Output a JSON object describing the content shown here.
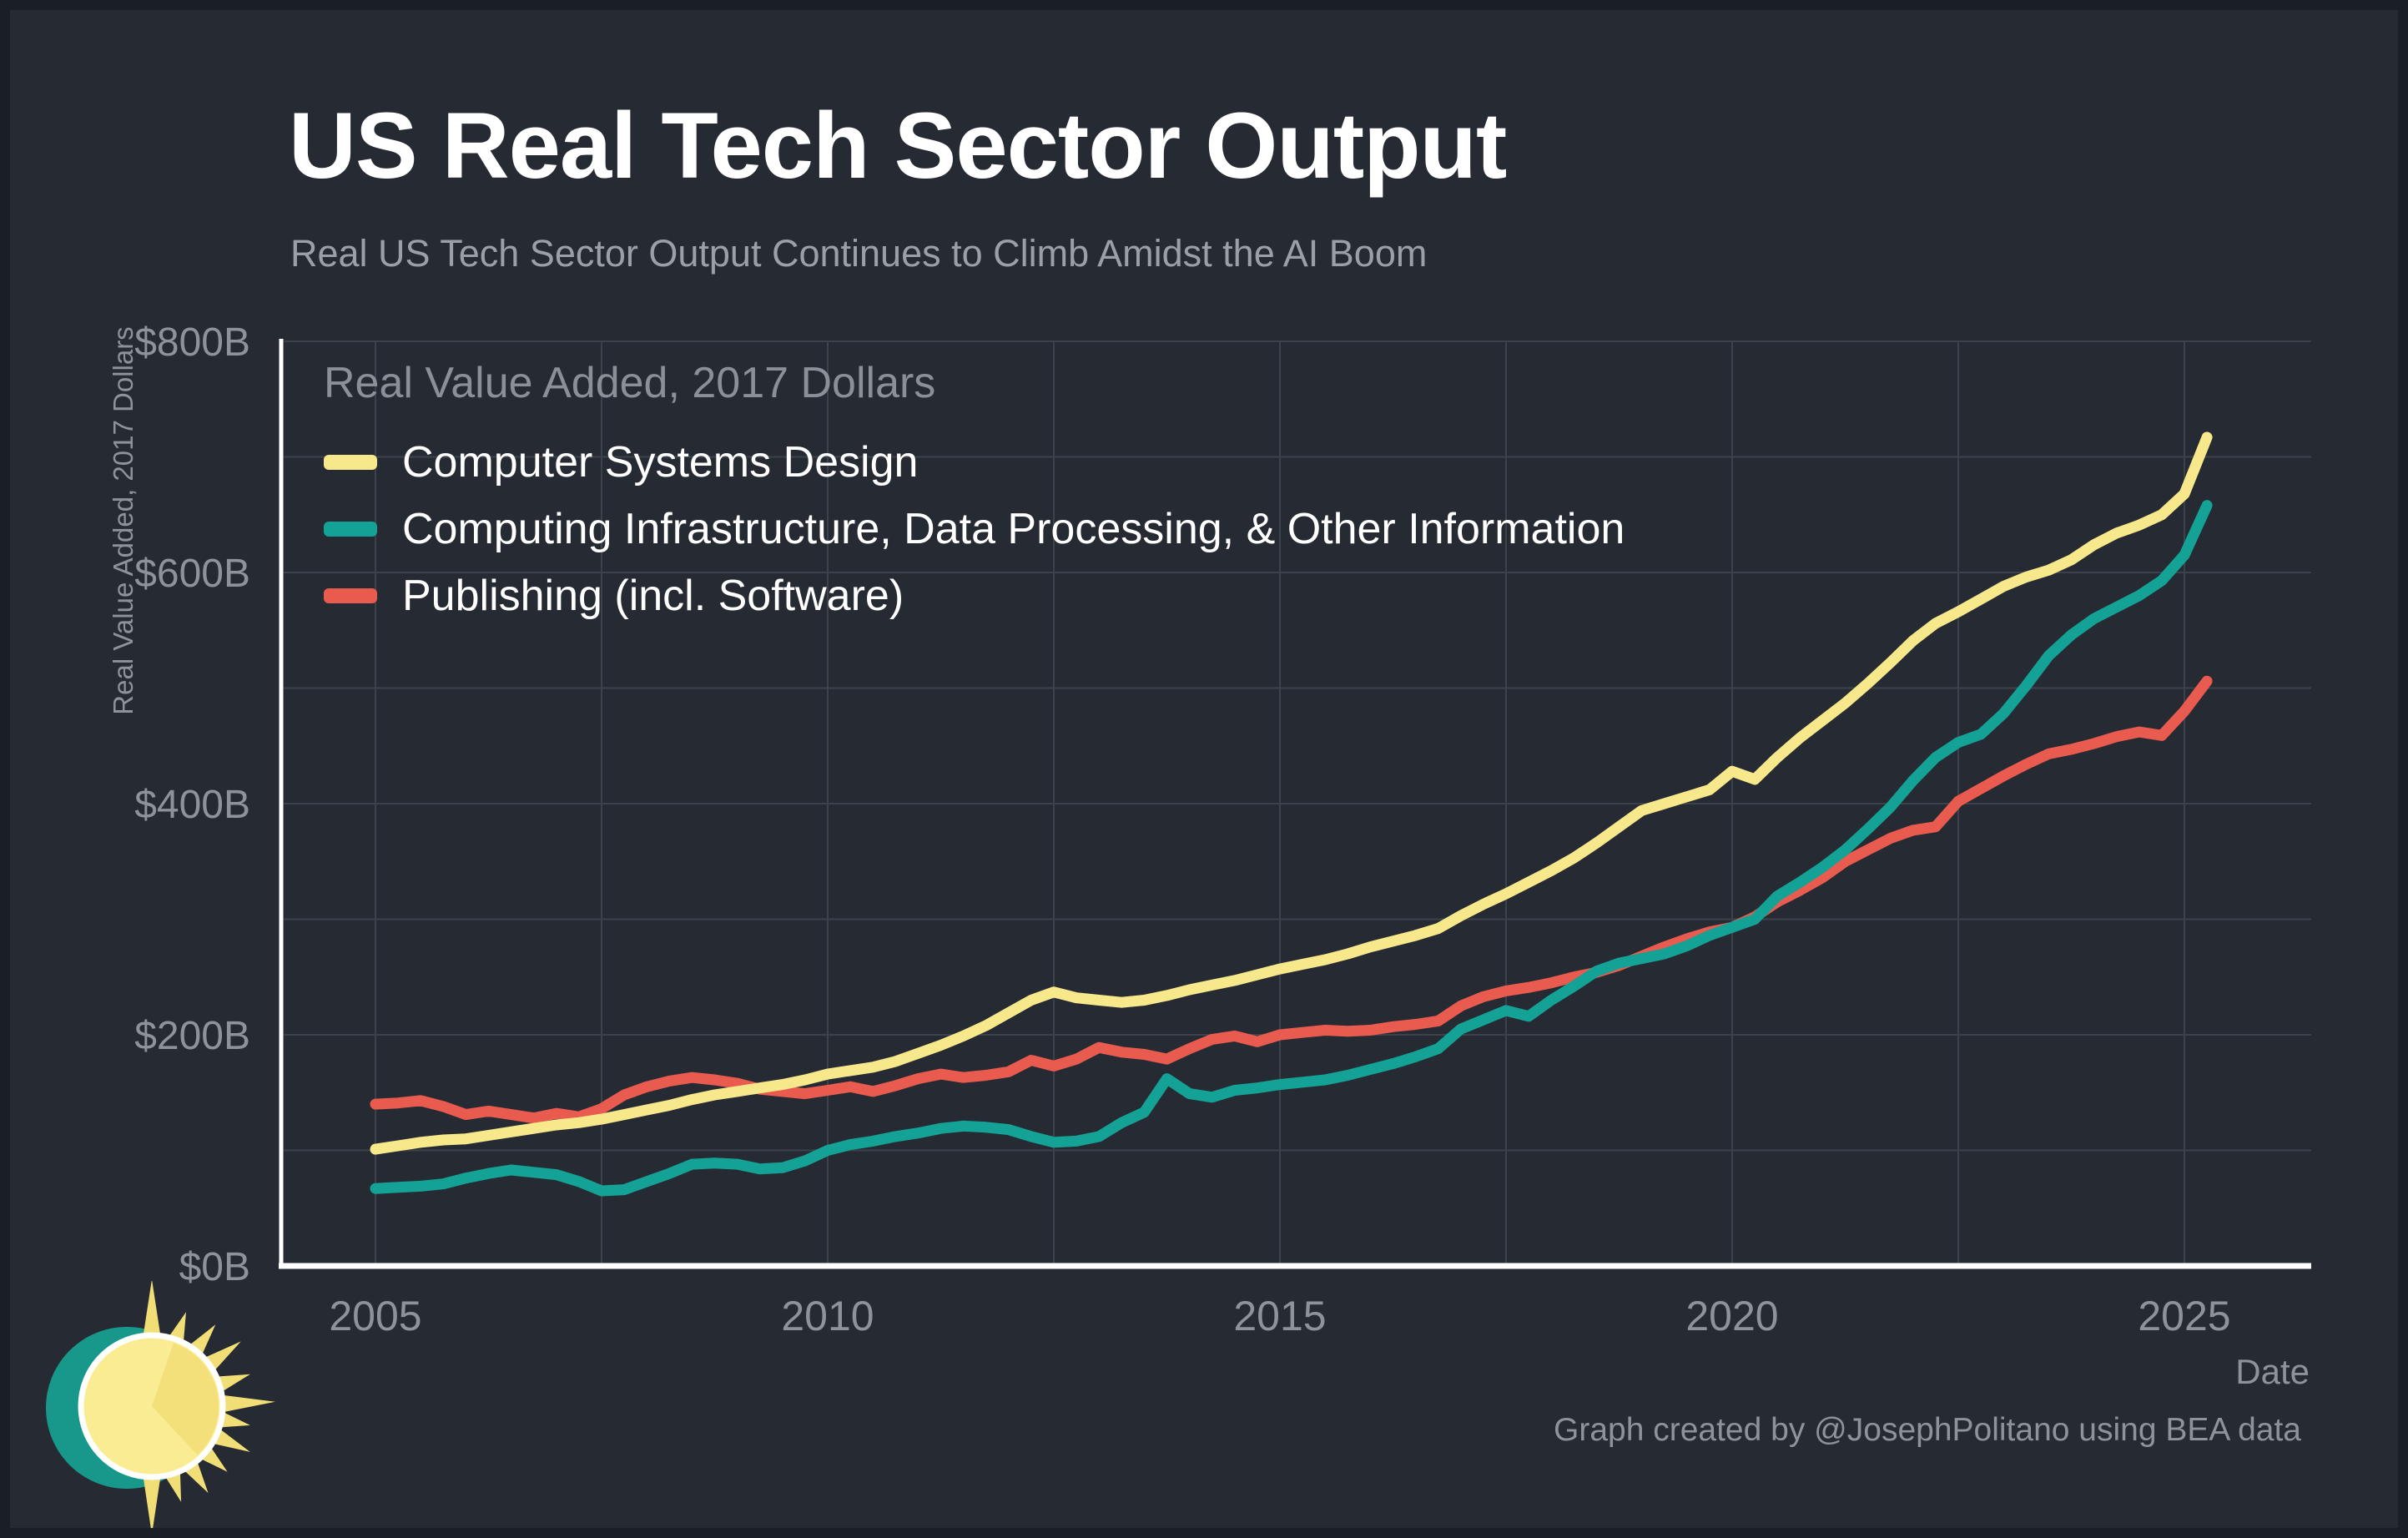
{
  "header": {
    "title": "US Real Tech Sector Output",
    "subtitle": "Real US Tech Sector Output Continues to Climb Amidst the AI Boom"
  },
  "footer": {
    "attribution": "Graph created by @JosephPolitano using BEA data"
  },
  "colors": {
    "background": "#262B33",
    "frame": "#1A1E25",
    "grid": "#3C424B",
    "axis": "#FFFFFF",
    "tick_text": "#8E939B",
    "title_text": "#FFFFFF",
    "subtitle_text": "#9BA0A7"
  },
  "chart_data": {
    "type": "line",
    "title": "US Real Tech Sector Output",
    "legend_title": "Real Value Added, 2017 Dollars",
    "xlabel": "Date",
    "ylabel": "Real Value Added, 2017 Dollars",
    "x_start": 2005.0,
    "x_step": 0.25,
    "xlim": [
      2004.0,
      2026.4
    ],
    "ylim": [
      0,
      800
    ],
    "grid": true,
    "legend_position": "top-left",
    "x_grid_step": 2.5,
    "y_grid_step": 100,
    "x_ticks": [
      {
        "v": 2005,
        "label": "2005"
      },
      {
        "v": 2010,
        "label": "2010"
      },
      {
        "v": 2015,
        "label": "2015"
      },
      {
        "v": 2020,
        "label": "2020"
      },
      {
        "v": 2025,
        "label": "2025"
      }
    ],
    "y_ticks": [
      {
        "v": 0,
        "label": "$0B"
      },
      {
        "v": 200,
        "label": "$200B"
      },
      {
        "v": 400,
        "label": "$400B"
      },
      {
        "v": 600,
        "label": "$600B"
      },
      {
        "v": 800,
        "label": "$800B"
      }
    ],
    "series": [
      {
        "name": "Computer Systems Design",
        "color": "#F8E88C",
        "values": [
          101,
          104,
          107,
          109,
          110,
          113,
          116,
          119,
          122,
          124,
          127,
          131,
          135,
          139,
          144,
          148,
          151,
          154,
          157,
          161,
          166,
          169,
          172,
          177,
          184,
          191,
          199,
          208,
          219,
          230,
          237,
          232,
          230,
          228,
          230,
          234,
          239,
          243,
          247,
          252,
          257,
          261,
          265,
          270,
          276,
          281,
          286,
          292,
          303,
          313,
          322,
          332,
          342,
          353,
          366,
          380,
          394,
          400,
          406,
          412,
          428,
          421,
          440,
          457,
          472,
          487,
          504,
          522,
          541,
          556,
          566,
          577,
          588,
          596,
          602,
          611,
          624,
          634,
          641,
          650,
          668,
          717
        ]
      },
      {
        "name": "Computing Infrastructure, Data Processing, & Other Information",
        "color": "#13A295",
        "values": [
          67,
          68,
          69,
          71,
          76,
          80,
          83,
          81,
          79,
          73,
          65,
          66,
          73,
          80,
          88,
          89,
          88,
          84,
          85,
          91,
          100,
          105,
          108,
          112,
          115,
          119,
          121,
          120,
          118,
          112,
          107,
          108,
          112,
          124,
          133,
          162,
          149,
          146,
          152,
          154,
          157,
          159,
          161,
          165,
          170,
          175,
          181,
          188,
          205,
          213,
          221,
          216,
          230,
          242,
          255,
          262,
          266,
          270,
          277,
          286,
          293,
          300,
          320,
          332,
          345,
          360,
          378,
          397,
          420,
          440,
          453,
          460,
          478,
          502,
          528,
          546,
          560,
          570,
          580,
          593,
          615,
          658
        ]
      },
      {
        "name": "Publishing (incl. Software)",
        "color": "#E95B4E",
        "values": [
          140,
          141,
          143,
          138,
          131,
          134,
          131,
          128,
          132,
          129,
          136,
          148,
          155,
          160,
          163,
          161,
          158,
          153,
          151,
          149,
          152,
          155,
          151,
          156,
          162,
          166,
          163,
          165,
          168,
          178,
          173,
          179,
          189,
          185,
          183,
          179,
          188,
          196,
          199,
          194,
          200,
          202,
          204,
          203,
          204,
          207,
          209,
          212,
          225,
          233,
          238,
          241,
          245,
          250,
          254,
          260,
          268,
          276,
          283,
          289,
          293,
          302,
          315,
          325,
          336,
          350,
          360,
          370,
          377,
          380,
          402,
          413,
          424,
          434,
          443,
          447,
          452,
          458,
          462,
          459,
          480,
          506
        ]
      }
    ]
  }
}
